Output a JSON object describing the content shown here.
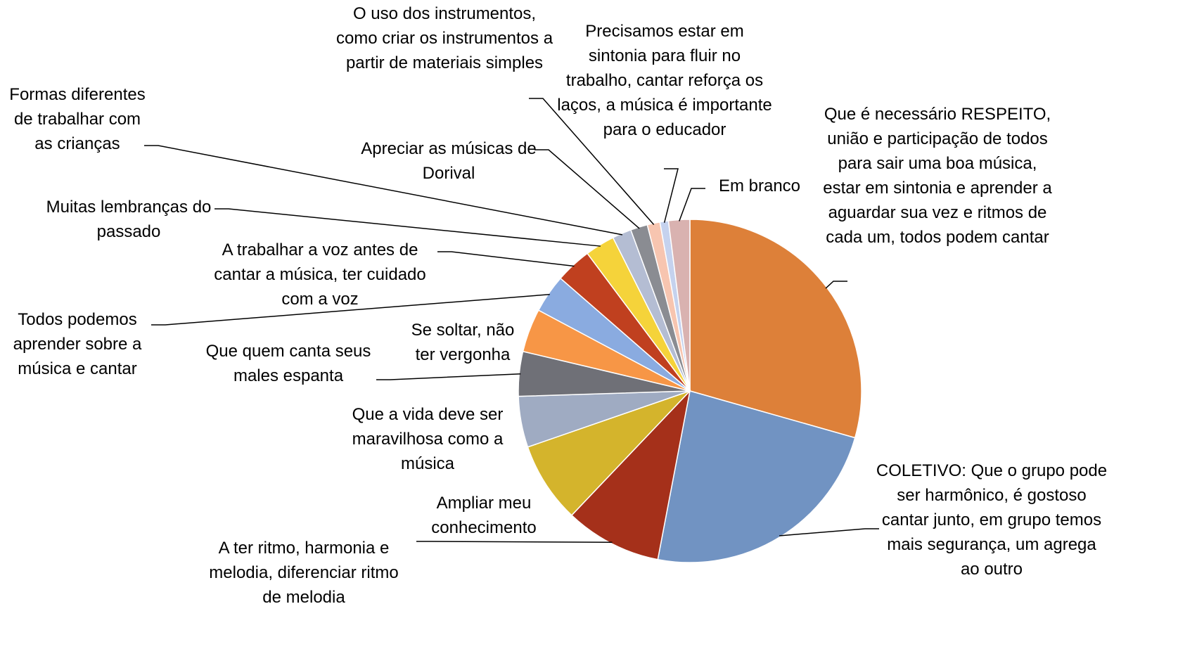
{
  "chart_data": {
    "type": "pie",
    "categories": [
      "Que é necessário RESPEITO, união e participação de todos para sair uma boa música, estar em sintonia e aprender a aguardar sua vez e ritmos de cada um, todos podem cantar",
      "COLETIVO: Que o grupo pode ser harmônico, é gostoso cantar junto, em grupo temos mais segurança, um agrega ao outro",
      "A ter ritmo, harmonia e melodia, diferenciar ritmo de melodia",
      "Ampliar meu conhecimento",
      "Que a vida deve ser maravilhosa como a música",
      "Que quem canta seus males espanta",
      "Se soltar, não ter vergonha",
      "Todos podemos aprender sobre a música e cantar",
      "A trabalhar a voz antes de cantar a música, ter cuidado com a voz",
      "Muitas lembranças do passado",
      "Formas diferentes de trabalhar com as crianças",
      "Apreciar as músicas de Dorival",
      "O uso dos instrumentos, como criar os instrumentos a partir de materiais simples",
      "Precisamos estar em sintonia para fluir no trabalho, cantar reforça os laços, a música é importante para o educador",
      "Em branco"
    ],
    "values": [
      29.4,
      23.6,
      9.1,
      7.6,
      4.8,
      4.2,
      4.1,
      3.6,
      3.4,
      2.8,
      1.8,
      1.6,
      1.2,
      0.8,
      2.0
    ],
    "colors": [
      "#dd8039",
      "#7193c2",
      "#a5301a",
      "#d4b42c",
      "#9fabc2",
      "#6f7077",
      "#f79646",
      "#8aabe0",
      "#c0401f",
      "#f5d33a",
      "#b4bdd3",
      "#8a8c92",
      "#f7c5b0",
      "#c5d2ee",
      "#d9b2b0"
    ]
  }
}
